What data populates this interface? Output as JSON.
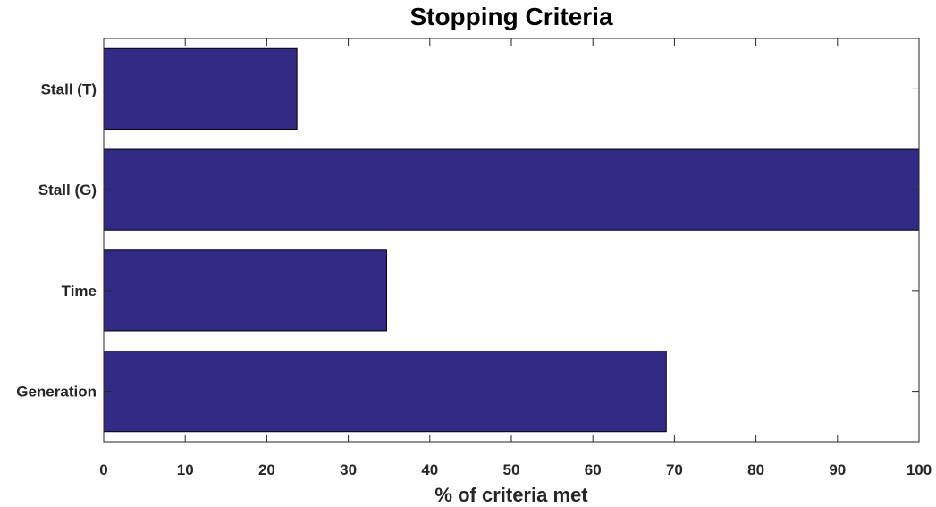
{
  "chart_data": {
    "type": "bar",
    "orientation": "horizontal",
    "title": "Stopping Criteria",
    "xlabel": "% of criteria met",
    "ylabel": "",
    "categories": [
      "Stall (T)",
      "Stall (G)",
      "Time",
      "Generation"
    ],
    "values": [
      23.7,
      100,
      34.7,
      69.0
    ],
    "xlim": [
      0,
      100
    ],
    "xticks": [
      0,
      10,
      20,
      30,
      40,
      50,
      60,
      70,
      80,
      90,
      100
    ],
    "grid": false,
    "legend": "none",
    "bar_color": "#332a85",
    "bar_edge_color": "#000000",
    "axis_color": "#262626"
  }
}
